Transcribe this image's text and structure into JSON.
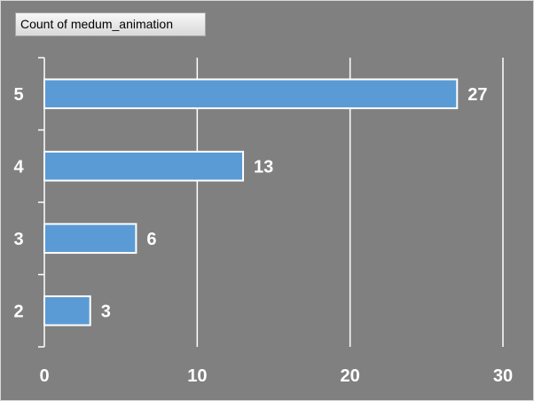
{
  "field_button": {
    "label": "Count of medum_animation"
  },
  "chart_data": {
    "type": "bar",
    "orientation": "horizontal",
    "categories": [
      "2",
      "3",
      "4",
      "5"
    ],
    "values": [
      3,
      6,
      13,
      27
    ],
    "xlim": [
      0,
      30
    ],
    "x_ticks": [
      "0",
      "10",
      "20",
      "30"
    ],
    "grid": true,
    "legend": "none",
    "bar_color": "#5b9bd5",
    "bar_border_color": "#ffffff",
    "background_color": "#808080",
    "text_color": "#ffffff"
  }
}
